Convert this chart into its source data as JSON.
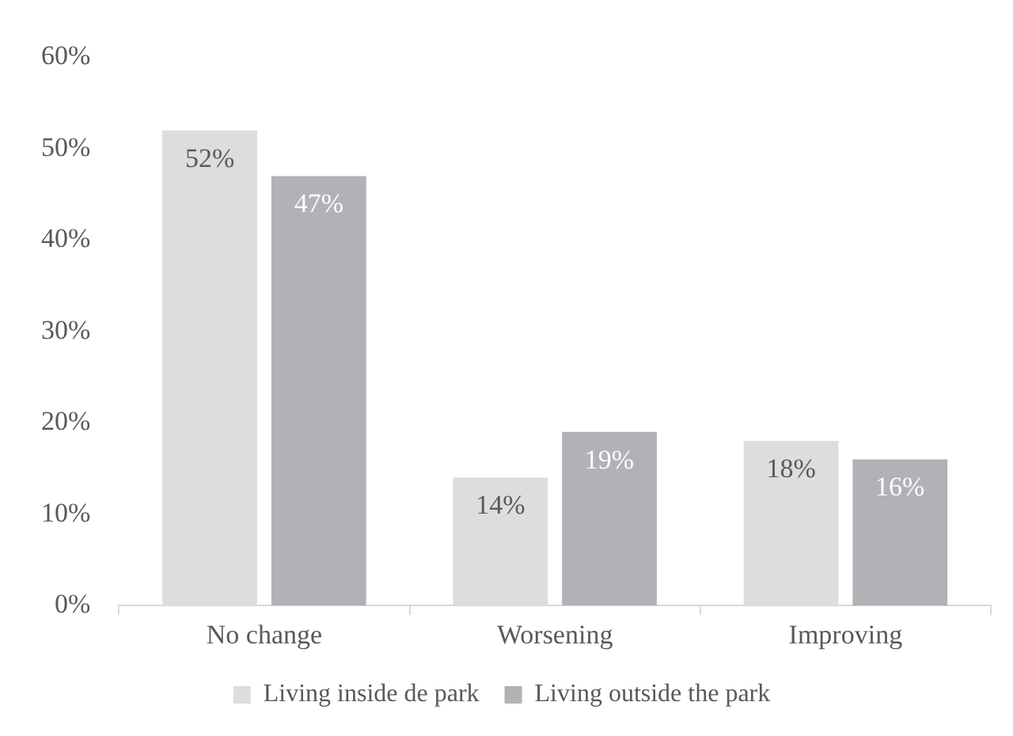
{
  "chart_data": {
    "type": "bar",
    "categories": [
      "No change",
      "Worsening",
      "Improving"
    ],
    "series": [
      {
        "name": "Living inside de park",
        "color": "#dcdddf",
        "values": [
          52,
          14,
          18
        ],
        "value_labels": [
          "52%",
          "14%",
          "18%"
        ]
      },
      {
        "name": "Living outside the park",
        "color": "#b1b2b6",
        "values": [
          47,
          19,
          16
        ],
        "value_labels": [
          "47%",
          "19%",
          "16%"
        ]
      }
    ],
    "ylim": [
      0,
      60
    ],
    "yticks": [
      {
        "value": 0,
        "label": "0%"
      },
      {
        "value": 10,
        "label": "10%"
      },
      {
        "value": 20,
        "label": "20%"
      },
      {
        "value": 30,
        "label": "30%"
      },
      {
        "value": 40,
        "label": "40%"
      },
      {
        "value": 50,
        "label": "50%"
      },
      {
        "value": 60,
        "label": "60%"
      }
    ],
    "legend": "bottom"
  }
}
